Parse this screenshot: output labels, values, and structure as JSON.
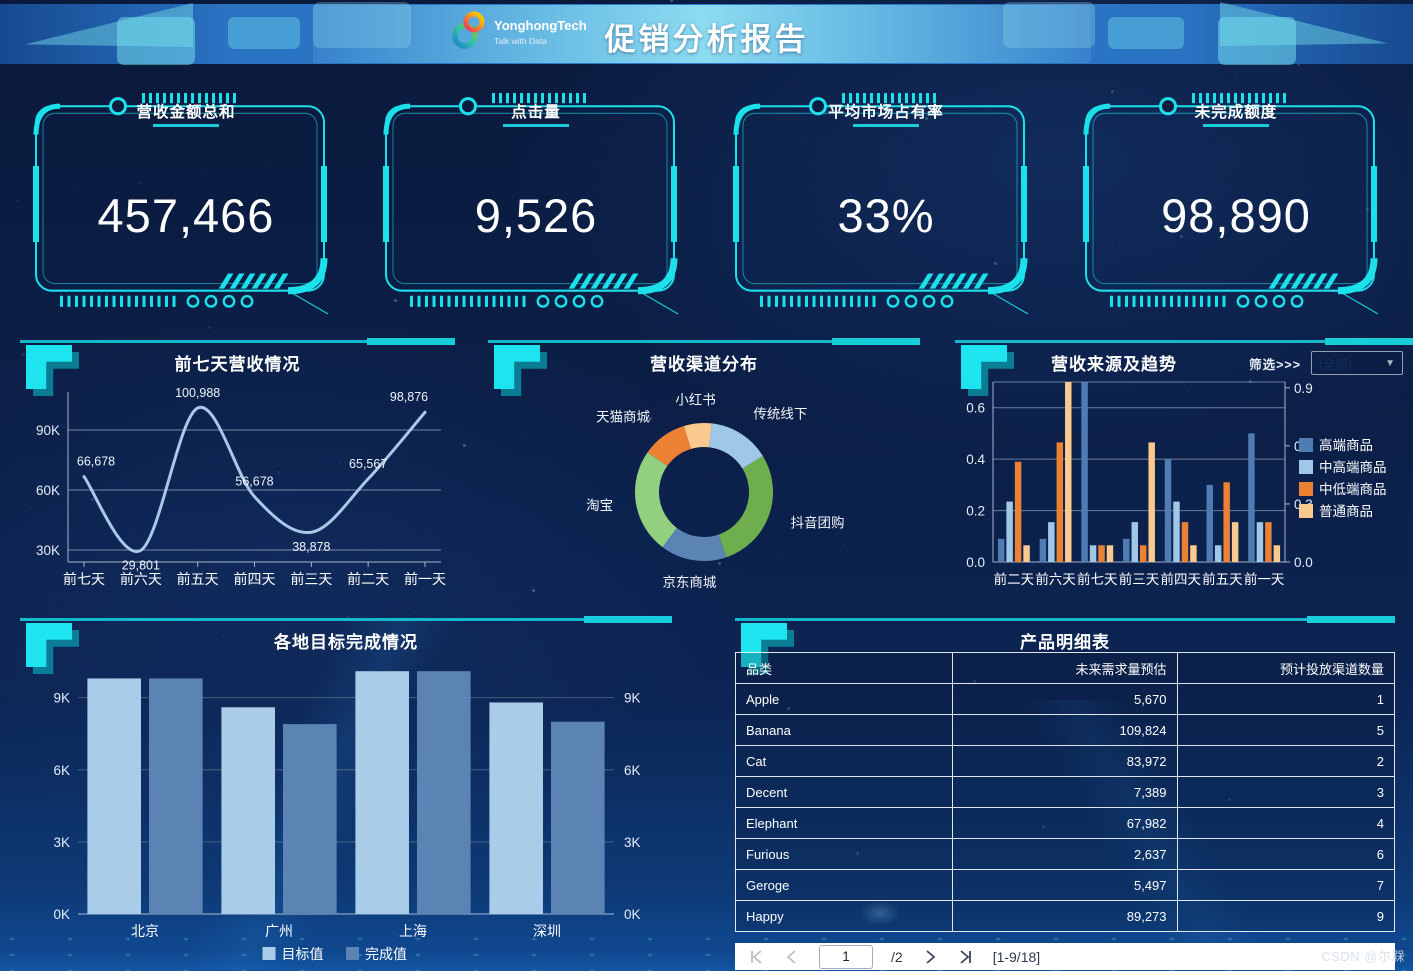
{
  "header": {
    "title": "促销分析报告",
    "logo_name": "YonghongTech",
    "logo_tagline": "Talk with Data"
  },
  "kpis": [
    {
      "label": "营收金额总和",
      "value": "457,466"
    },
    {
      "label": "点击量",
      "value": "9,526"
    },
    {
      "label": "平均市场占有率",
      "value": "33%"
    },
    {
      "label": "未完成额度",
      "value": "98,890"
    }
  ],
  "filter": {
    "label": "筛选>>>",
    "value": "(全部)"
  },
  "chart_data": [
    {
      "type": "line",
      "title": "前七天营收情况",
      "categories": [
        "前七天",
        "前六天",
        "前五天",
        "前四天",
        "前三天",
        "前二天",
        "前一天"
      ],
      "values": [
        66678,
        29801,
        100988,
        56678,
        38878,
        65567,
        98876
      ],
      "labels": [
        "66,678",
        "29,801",
        "100,988",
        "56,678",
        "38,878",
        "65,567",
        "98,876"
      ],
      "label_below": [
        1,
        4
      ],
      "ylim": [
        24000,
        106000
      ],
      "yticks": [
        {
          "v": 30000,
          "label": "30K"
        },
        {
          "v": 60000,
          "label": "60K"
        },
        {
          "v": 90000,
          "label": "90K"
        }
      ],
      "line_color": "#aac8e8"
    },
    {
      "type": "pie",
      "title": "营收渠道分布",
      "donut": true,
      "start_angle": -17,
      "segments": [
        {
          "label": "小红书",
          "value": 6.5,
          "color": "#f9c98e"
        },
        {
          "label": "传统线下",
          "value": 14.5,
          "color": "#9fc8e8"
        },
        {
          "label": "抖音团购",
          "value": 28.5,
          "color": "#6fae4e"
        },
        {
          "label": "京东商城",
          "value": 15.5,
          "color": "#5b84b4"
        },
        {
          "label": "淘宝",
          "value": 24.5,
          "color": "#92d07f"
        },
        {
          "label": "天猫商城",
          "value": 10.5,
          "color": "#ec8133"
        }
      ]
    },
    {
      "type": "bar",
      "title": "营收来源及趋势",
      "categories": [
        "前二天",
        "前六天",
        "前七天",
        "前三天",
        "前四天",
        "前五天",
        "前一天"
      ],
      "series": [
        {
          "name": "高端商品",
          "color": "#4f7db3",
          "values": [
            0.09,
            0.09,
            0.7,
            0.09,
            0.4,
            0.3,
            0.5
          ]
        },
        {
          "name": "中高端商品",
          "color": "#9fc8e8",
          "values": [
            0.235,
            0.155,
            0.065,
            0.155,
            0.235,
            0.065,
            0.155
          ]
        },
        {
          "name": "中低端商品",
          "color": "#ec8133",
          "values": [
            0.39,
            0.465,
            0.065,
            0.065,
            0.155,
            0.31,
            0.155
          ]
        },
        {
          "name": "普通商品",
          "color": "#f9c98e",
          "values": [
            0.065,
            0.7,
            0.065,
            0.465,
            0.065,
            0.155,
            0.065
          ]
        }
      ],
      "ylim": [
        0,
        0.7
      ],
      "yticks": [
        {
          "v": 0,
          "label": "0.0"
        },
        {
          "v": 0.2,
          "label": "0.2"
        },
        {
          "v": 0.4,
          "label": "0.4"
        },
        {
          "v": 0.6,
          "label": "0.6"
        }
      ],
      "right_axis": {
        "max": 0.93,
        "ticks": [
          {
            "v": 0,
            "label": "0.0"
          },
          {
            "v": 0.3,
            "label": "0.3"
          },
          {
            "v": 0.6,
            "label": "0.6"
          },
          {
            "v": 0.9,
            "label": "0.9"
          }
        ]
      },
      "legend_position": "right"
    },
    {
      "type": "bar",
      "title": "各地目标完成情况",
      "categories": [
        "北京",
        "广州",
        "上海",
        "深圳"
      ],
      "series": [
        {
          "name": "目标值",
          "color": "#a9cce9",
          "values": [
            9800,
            8600,
            10100,
            8800
          ]
        },
        {
          "name": "完成值",
          "color": "#5b84b4",
          "values": [
            9800,
            7900,
            10100,
            8000
          ]
        }
      ],
      "ylim": [
        0,
        10400
      ],
      "yticks": [
        {
          "v": 0,
          "label": "0K"
        },
        {
          "v": 3000,
          "label": "3K"
        },
        {
          "v": 6000,
          "label": "6K"
        },
        {
          "v": 9000,
          "label": "9K"
        }
      ],
      "mirror_right_ticks": true,
      "legend_position": "bottom"
    },
    {
      "type": "table",
      "title": "产品明细表",
      "columns": [
        "品类",
        "未来需求量预估",
        "预计投放渠道数量"
      ],
      "rows": [
        [
          "Apple",
          "5,670",
          "1"
        ],
        [
          "Banana",
          "109,824",
          "5"
        ],
        [
          "Cat",
          "83,972",
          "2"
        ],
        [
          "Decent",
          "7,389",
          "3"
        ],
        [
          "Elephant",
          "67,982",
          "4"
        ],
        [
          "Furious",
          "2,637",
          "6"
        ],
        [
          "Geroge",
          "5,497",
          "7"
        ],
        [
          "Happy",
          "89,273",
          "9"
        ]
      ]
    }
  ],
  "pagination": {
    "page": "1",
    "total": "/2",
    "range": "[1-9/18]"
  },
  "watermark": "CSDN @尔槑",
  "colors": {
    "accent": "#1ce0ea"
  }
}
